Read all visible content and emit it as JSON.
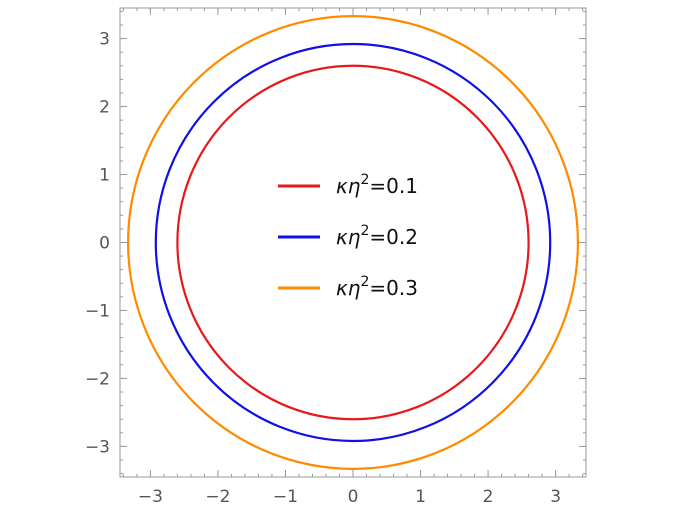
{
  "chart_data": {
    "type": "line",
    "title": "",
    "xlabel": "",
    "ylabel": "",
    "xlim": [
      -3.45,
      3.45
    ],
    "ylim": [
      -3.45,
      3.45
    ],
    "grid": false,
    "legend_placement": "center",
    "x_ticks": [
      {
        "value": -3,
        "label": "−3"
      },
      {
        "value": -2,
        "label": "−2"
      },
      {
        "value": -1,
        "label": "−1"
      },
      {
        "value": 0,
        "label": "0"
      },
      {
        "value": 1,
        "label": "1"
      },
      {
        "value": 2,
        "label": "2"
      },
      {
        "value": 3,
        "label": "3"
      }
    ],
    "y_ticks": [
      {
        "value": -3,
        "label": "−3"
      },
      {
        "value": -2,
        "label": "−2"
      },
      {
        "value": -1,
        "label": "−1"
      },
      {
        "value": 0,
        "label": "0"
      },
      {
        "value": 1,
        "label": "1"
      },
      {
        "value": 2,
        "label": "2"
      },
      {
        "value": 3,
        "label": "3"
      }
    ],
    "series": [
      {
        "name": "κη²=0.1",
        "name_base": "κη",
        "name_sup": "2",
        "name_rest": "=0.1",
        "color": "#e8191b",
        "radius": 2.6,
        "center": [
          0,
          0
        ]
      },
      {
        "name": "κη²=0.2",
        "name_base": "κη",
        "name_sup": "2",
        "name_rest": "=0.2",
        "color": "#1010e8",
        "radius": 2.92,
        "center": [
          0,
          0
        ]
      },
      {
        "name": "κη²=0.3",
        "name_base": "κη",
        "name_sup": "2",
        "name_rest": "=0.3",
        "color": "#ff8c00",
        "radius": 3.33,
        "center": [
          0,
          0
        ]
      }
    ]
  }
}
